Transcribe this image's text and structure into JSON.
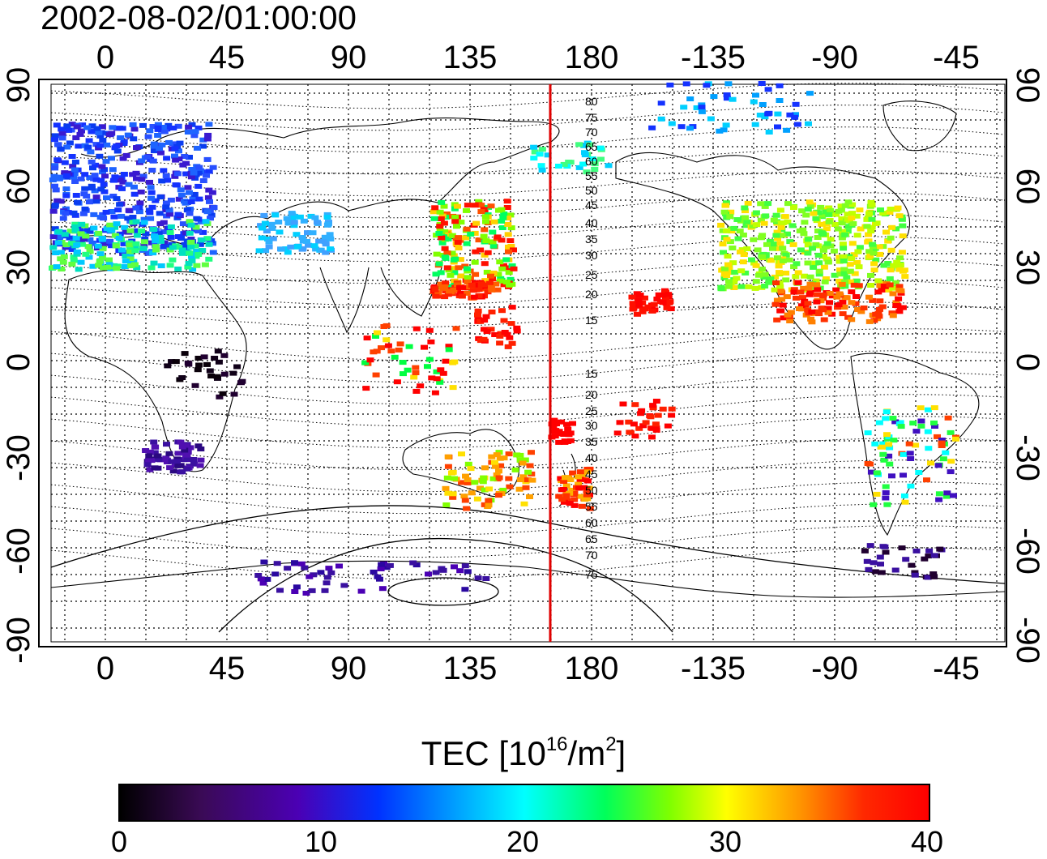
{
  "title": "2002-08-02/01:00:00",
  "map": {
    "top_lon_ticks": [
      "0",
      "45",
      "90",
      "135",
      "180",
      "-135",
      "-90",
      "-45"
    ],
    "bottom_lon_ticks": [
      "0",
      "45",
      "90",
      "135",
      "180",
      "-135",
      "-90",
      "-45"
    ],
    "left_lat_ticks": [
      "90",
      "60",
      "30",
      "0",
      "-30",
      "-60",
      "-90"
    ],
    "right_lat_ticks": [
      "90",
      "60",
      "30",
      "0",
      "-30",
      "-60",
      "-90"
    ],
    "contour_labels": [
      "80",
      "75",
      "70",
      "65",
      "60",
      "55",
      "50",
      "45",
      "40",
      "35",
      "30",
      "25",
      "20",
      "15",
      "15",
      "20",
      "25",
      "30",
      "35",
      "40",
      "45",
      "50",
      "55",
      "60",
      "65",
      "70",
      "75"
    ],
    "marker_line_color": "#e00000"
  },
  "colorbar": {
    "title_main": "TEC  [10",
    "title_sup1": "16",
    "title_mid": "/m",
    "title_sup2": "2",
    "title_end": "]",
    "ticks": [
      "0",
      "10",
      "20",
      "30",
      "40"
    ],
    "range": [
      0,
      40
    ]
  }
}
